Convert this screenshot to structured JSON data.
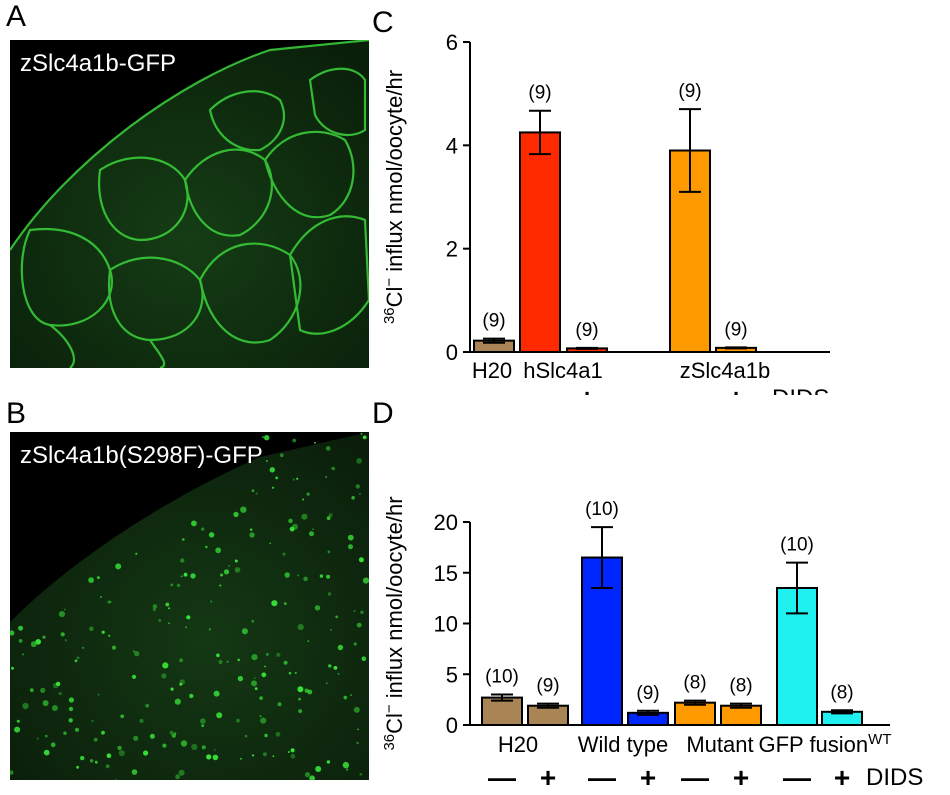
{
  "panels": {
    "A": {
      "letter": "A",
      "label": "zSlc4a1b-GFP"
    },
    "B": {
      "letter": "B",
      "label": "zSlc4a1b(S298F)-GFP"
    },
    "C": {
      "letter": "C"
    },
    "D": {
      "letter": "D"
    }
  },
  "colors": {
    "h2o": "#a98555",
    "hslc": "#ff2a00",
    "orange": "#ff9900",
    "blue": "#0026ff",
    "cyan": "#1ff0f0",
    "gfp": "#2fd92f"
  },
  "chart_data": [
    {
      "id": "C",
      "type": "bar",
      "ylabel_iso": "36",
      "ylabel_ion": "Cl",
      "ylabel_charge": "−",
      "ylabel_rest": " influx nmol/oocyte/hr",
      "ylim": [
        0,
        6
      ],
      "yticks": [
        "0",
        "2",
        "4",
        "6"
      ],
      "bars": [
        {
          "value": 0.22,
          "err": 0.04,
          "n": "(9)",
          "color_key": "h2o",
          "dids": "—"
        },
        {
          "value": 4.25,
          "err": 0.42,
          "n": "(9)",
          "color_key": "hslc",
          "dids": "—"
        },
        {
          "value": 0.07,
          "err": 0.01,
          "n": "(9)",
          "color_key": "hslc",
          "dids": "+"
        },
        {
          "value": 3.9,
          "err": 0.8,
          "n": "(9)",
          "color_key": "orange",
          "dids": "—"
        },
        {
          "value": 0.08,
          "err": 0.01,
          "n": "(9)",
          "color_key": "orange",
          "dids": "+"
        }
      ],
      "group_labels": [
        "H20",
        "hSlc4a1",
        "zSlc4a1b"
      ],
      "dids_label": "DIDS"
    },
    {
      "id": "D",
      "type": "bar",
      "ylabel_iso": "36",
      "ylabel_ion": "Cl",
      "ylabel_charge": "−",
      "ylabel_rest": " influx nmol/oocyte/hr",
      "ylim": [
        0,
        20
      ],
      "yticks": [
        "0",
        "5",
        "10",
        "15",
        "20"
      ],
      "bars": [
        {
          "value": 2.7,
          "err": 0.3,
          "n": "(10)",
          "color_key": "h2o",
          "dids": "—"
        },
        {
          "value": 1.9,
          "err": 0.2,
          "n": "(9)",
          "color_key": "h2o",
          "dids": "+"
        },
        {
          "value": 16.5,
          "err": 3.0,
          "n": "(10)",
          "color_key": "blue",
          "dids": "—"
        },
        {
          "value": 1.2,
          "err": 0.2,
          "n": "(9)",
          "color_key": "blue",
          "dids": "+"
        },
        {
          "value": 2.2,
          "err": 0.2,
          "n": "(8)",
          "color_key": "orange",
          "dids": "—"
        },
        {
          "value": 1.9,
          "err": 0.2,
          "n": "(8)",
          "color_key": "orange",
          "dids": "+"
        },
        {
          "value": 13.5,
          "err": 2.5,
          "n": "(10)",
          "color_key": "cyan",
          "dids": "—"
        },
        {
          "value": 1.3,
          "err": 0.15,
          "n": "(8)",
          "color_key": "cyan",
          "dids": "+"
        }
      ],
      "group_labels": [
        "H20",
        "Wild type",
        "Mutant",
        "GFP fusion"
      ],
      "gfp_superscript": "WT",
      "dids_label": "DIDS"
    }
  ]
}
